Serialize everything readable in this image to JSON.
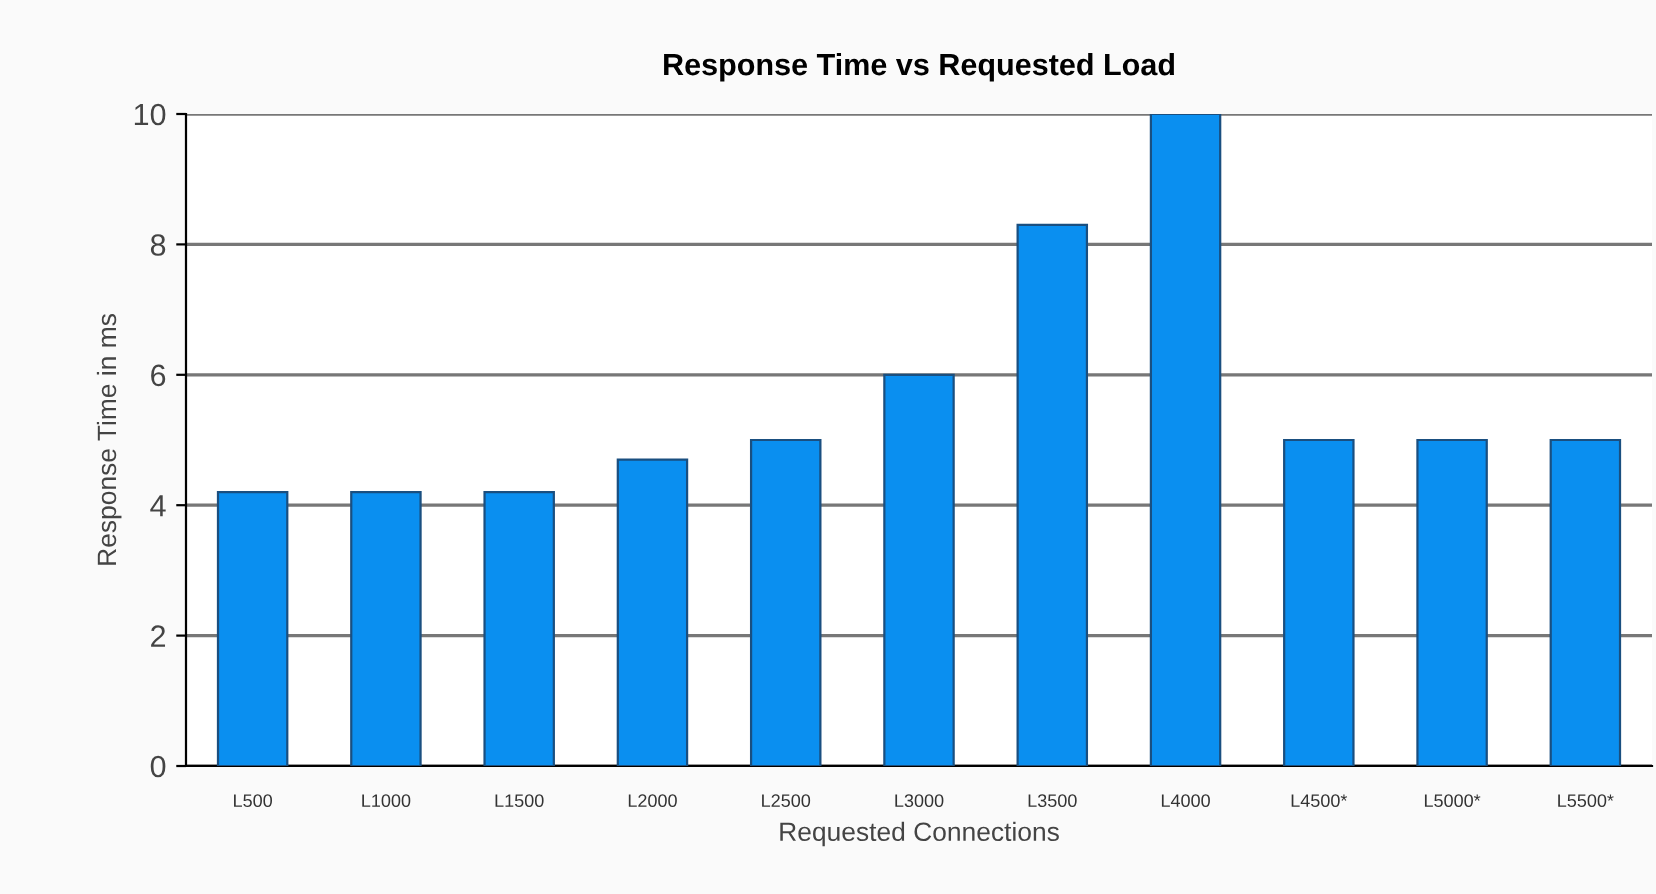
{
  "chart_data": {
    "type": "bar",
    "title": "Response Time vs Requested Load",
    "xlabel": "Requested Connections",
    "ylabel": "Response Time in ms",
    "categories": [
      "L500",
      "L1000",
      "L1500",
      "L2000",
      "L2500",
      "L3000",
      "L3500",
      "L4000",
      "L4500*",
      "L5000*",
      "L5500*"
    ],
    "values": [
      4.2,
      4.2,
      4.2,
      4.7,
      5,
      6,
      8.3,
      10,
      5,
      5,
      5
    ],
    "color": "#0a8ff0",
    "ylim": [
      0,
      10
    ],
    "yticks": [
      0,
      2,
      4,
      6,
      8,
      10
    ],
    "grid": "y"
  }
}
